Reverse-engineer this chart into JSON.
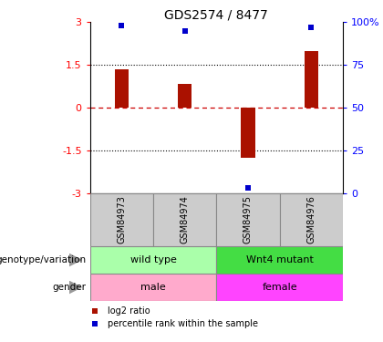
{
  "title": "GDS2574 / 8477",
  "samples": [
    "GSM84973",
    "GSM84974",
    "GSM84975",
    "GSM84976"
  ],
  "log2_ratio": [
    1.35,
    0.85,
    -1.75,
    2.0
  ],
  "percentile_rank": [
    98,
    95,
    3,
    97
  ],
  "ylim_left": [
    -3,
    3
  ],
  "ylim_right": [
    0,
    100
  ],
  "bar_color": "#AA1100",
  "dot_color": "#0000CC",
  "zero_line_color": "#CC0000",
  "dotted_line_vals": [
    1.5,
    -1.5
  ],
  "right_ticks": [
    0,
    25,
    50,
    75,
    100
  ],
  "right_tick_labels": [
    "0",
    "25",
    "50",
    "75",
    "100%"
  ],
  "left_ticks": [
    -3,
    -1.5,
    0,
    1.5,
    3
  ],
  "left_tick_labels": [
    "-3",
    "-1.5",
    "0",
    "1.5",
    "3"
  ],
  "bar_width": 0.22,
  "annotation_rows": [
    {
      "label": "genotype/variation",
      "groups": [
        {
          "samples": [
            0,
            1
          ],
          "text": "wild type",
          "color": "#AAFFAA"
        },
        {
          "samples": [
            2,
            3
          ],
          "text": "Wnt4 mutant",
          "color": "#44DD44"
        }
      ]
    },
    {
      "label": "gender",
      "groups": [
        {
          "samples": [
            0,
            1
          ],
          "text": "male",
          "color": "#FFAACC"
        },
        {
          "samples": [
            2,
            3
          ],
          "text": "female",
          "color": "#FF44FF"
        }
      ]
    }
  ],
  "legend_items": [
    {
      "color": "#AA1100",
      "label": "log2 ratio",
      "marker": "s"
    },
    {
      "color": "#0000CC",
      "label": "percentile rank within the sample",
      "marker": "s"
    }
  ],
  "sample_box_color": "#CCCCCC",
  "sample_box_edge": "#888888"
}
